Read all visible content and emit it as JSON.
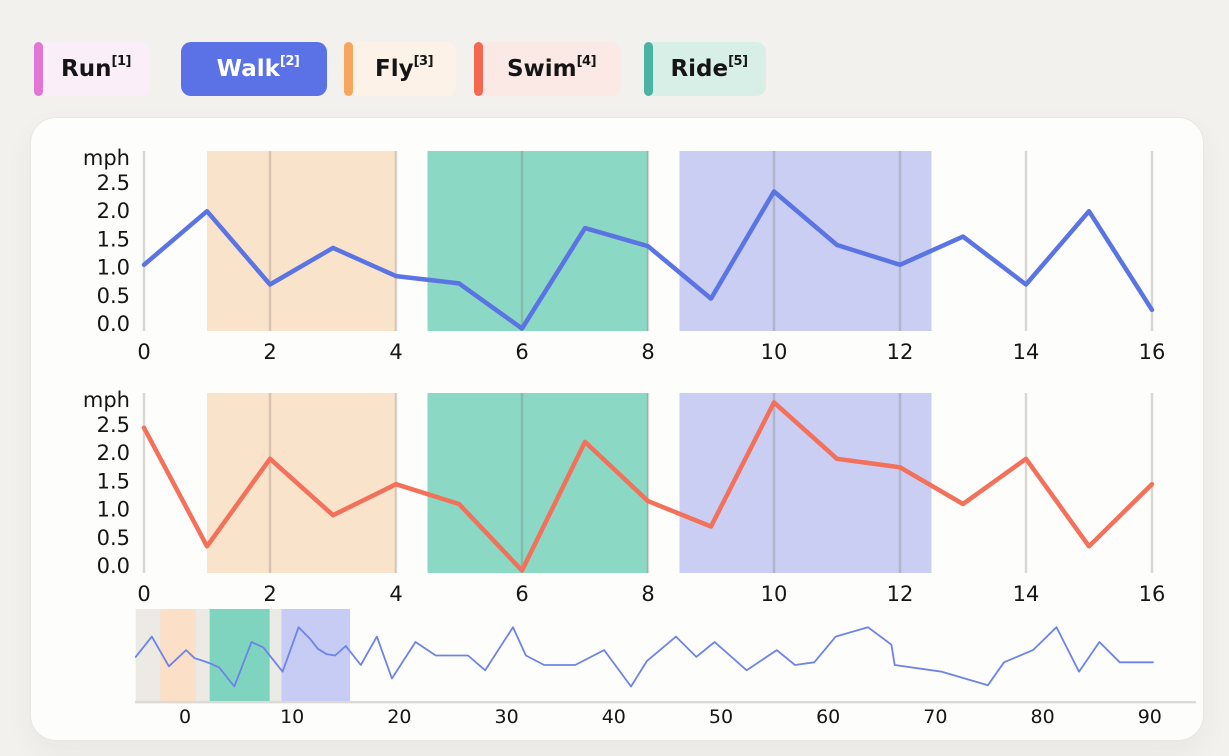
{
  "page": {
    "background": "#f2f1ee",
    "panel_background": "#fdfdfb"
  },
  "legend": {
    "items": [
      {
        "label": "Run",
        "sup": "[1]",
        "accent": "#e176d4",
        "bg": "#faeef8",
        "text_color": "#151515",
        "selected": false
      },
      {
        "label": "Walk",
        "sup": "[2]",
        "accent": "#5a72e6",
        "bg": "#5a72e6",
        "text_color": "#ffffff",
        "selected": true
      },
      {
        "label": "Fly",
        "sup": "[3]",
        "accent": "#f8a55e",
        "bg": "#fdf2e8",
        "text_color": "#151515",
        "selected": false
      },
      {
        "label": "Swim",
        "sup": "[4]",
        "accent": "#f5674f",
        "bg": "#fbe9e5",
        "text_color": "#151515",
        "selected": false
      },
      {
        "label": "Ride",
        "sup": "[5]",
        "accent": "#4bb3a2",
        "bg": "#d8efe8",
        "text_color": "#151515",
        "selected": false
      }
    ]
  },
  "chart_data": [
    {
      "id": "walk-chart",
      "type": "line",
      "title": "",
      "xlabel": "",
      "ylabel": "mph",
      "x_ticks": [
        0,
        2,
        4,
        6,
        8,
        10,
        12,
        14,
        16
      ],
      "y_ticks": [
        "2.5",
        "2.0",
        "1.5",
        "1.0",
        "0.5",
        "0.0"
      ],
      "xlim": [
        -0.5,
        16.3
      ],
      "ylim": [
        -0.12,
        3.07
      ],
      "grid": "vertical-only",
      "regions": [
        {
          "from": 1.0,
          "to": 4.0,
          "color": "#fae3cb"
        },
        {
          "from": 4.5,
          "to": 8.0,
          "color": "#8bd8c4"
        },
        {
          "from": 8.5,
          "to": 12.5,
          "color": "#c9cef2"
        }
      ],
      "series": [
        {
          "name": "Walk",
          "color": "#5b74e4",
          "points": [
            [
              0,
              1.05
            ],
            [
              1,
              2.0
            ],
            [
              2,
              0.7
            ],
            [
              3,
              1.35
            ],
            [
              4,
              0.85
            ],
            [
              5,
              0.72
            ],
            [
              6,
              -0.08
            ],
            [
              7,
              1.7
            ],
            [
              8,
              1.38
            ],
            [
              9,
              0.45
            ],
            [
              10,
              2.35
            ],
            [
              11,
              1.4
            ],
            [
              12,
              1.05
            ],
            [
              13,
              1.55
            ],
            [
              14,
              0.7
            ],
            [
              15,
              2.0
            ],
            [
              16,
              0.25
            ]
          ]
        }
      ]
    },
    {
      "id": "swim-chart",
      "type": "line",
      "title": "",
      "xlabel": "",
      "ylabel": "mph",
      "x_ticks": [
        0,
        2,
        4,
        6,
        8,
        10,
        12,
        14,
        16
      ],
      "y_ticks": [
        "2.5",
        "2.0",
        "1.5",
        "1.0",
        "0.5",
        "0.0"
      ],
      "xlim": [
        -0.5,
        16.3
      ],
      "ylim": [
        -0.12,
        3.07
      ],
      "grid": "vertical-only",
      "regions": [
        {
          "from": 1.0,
          "to": 4.0,
          "color": "#fae3cb"
        },
        {
          "from": 4.5,
          "to": 8.0,
          "color": "#8bd8c4"
        },
        {
          "from": 8.5,
          "to": 12.5,
          "color": "#c9cef2"
        }
      ],
      "series": [
        {
          "name": "Swim",
          "color": "#f3705a",
          "points": [
            [
              0,
              2.45
            ],
            [
              1,
              0.35
            ],
            [
              2,
              1.9
            ],
            [
              3,
              0.9
            ],
            [
              4,
              1.45
            ],
            [
              5,
              1.1
            ],
            [
              6,
              -0.08
            ],
            [
              7,
              2.2
            ],
            [
              8,
              1.15
            ],
            [
              9,
              0.7
            ],
            [
              10,
              2.9
            ],
            [
              11,
              1.9
            ],
            [
              12,
              1.75
            ],
            [
              13,
              1.1
            ],
            [
              14,
              1.9
            ],
            [
              15,
              0.35
            ],
            [
              16,
              1.45
            ]
          ]
        }
      ]
    },
    {
      "id": "overview-chart",
      "type": "line",
      "title": "",
      "xlabel": "",
      "ylabel": "",
      "x_ticks": [
        0,
        10,
        20,
        30,
        40,
        50,
        60,
        70,
        80,
        90
      ],
      "y_ticks": [],
      "xlim": [
        -4.7,
        94.5
      ],
      "ylim": [
        0,
        3.2
      ],
      "grid": "off",
      "brush": {
        "from": -4.6,
        "to": 15.4,
        "color": "#eceae4"
      },
      "regions": [
        {
          "from": -2.3,
          "to": 1.0,
          "color": "#fbdfc6"
        },
        {
          "from": 2.3,
          "to": 7.9,
          "color": "#7fd4bf"
        },
        {
          "from": 9.0,
          "to": 15.4,
          "color": "#c6ccf3"
        }
      ],
      "series": [
        {
          "name": "overview",
          "color": "#6d84e6",
          "points": [
            [
              -4.6,
              1.45
            ],
            [
              -3.1,
              2.2
            ],
            [
              -1.5,
              1.1
            ],
            [
              0.1,
              1.7
            ],
            [
              0.9,
              1.4
            ],
            [
              1.7,
              1.3
            ],
            [
              2.4,
              1.2
            ],
            [
              3.2,
              1.05
            ],
            [
              4.6,
              0.35
            ],
            [
              6.2,
              2.0
            ],
            [
              7.3,
              1.8
            ],
            [
              9.1,
              0.9
            ],
            [
              10.6,
              2.55
            ],
            [
              11.7,
              2.1
            ],
            [
              12.4,
              1.75
            ],
            [
              13.2,
              1.55
            ],
            [
              14.0,
              1.5
            ],
            [
              15.0,
              1.85
            ],
            [
              16.4,
              1.15
            ],
            [
              17.9,
              2.2
            ],
            [
              19.3,
              0.65
            ],
            [
              21.5,
              2.0
            ],
            [
              23.4,
              1.5
            ],
            [
              26.4,
              1.5
            ],
            [
              28.0,
              0.95
            ],
            [
              30.6,
              2.55
            ],
            [
              31.8,
              1.5
            ],
            [
              33.5,
              1.15
            ],
            [
              36.4,
              1.15
            ],
            [
              39.1,
              1.7
            ],
            [
              41.6,
              0.35
            ],
            [
              43.1,
              1.3
            ],
            [
              45.8,
              2.2
            ],
            [
              47.7,
              1.45
            ],
            [
              49.4,
              2.0
            ],
            [
              52.4,
              0.95
            ],
            [
              55.2,
              1.7
            ],
            [
              56.9,
              1.15
            ],
            [
              58.7,
              1.25
            ],
            [
              60.7,
              2.2
            ],
            [
              63.7,
              2.55
            ],
            [
              65.9,
              1.9
            ],
            [
              66.2,
              1.15
            ],
            [
              70.6,
              0.9
            ],
            [
              74.9,
              0.4
            ],
            [
              76.4,
              1.25
            ],
            [
              79.1,
              1.7
            ],
            [
              81.3,
              2.55
            ],
            [
              83.4,
              0.9
            ],
            [
              85.3,
              2.0
            ],
            [
              87.2,
              1.25
            ],
            [
              90.3,
              1.25
            ]
          ]
        }
      ]
    }
  ]
}
